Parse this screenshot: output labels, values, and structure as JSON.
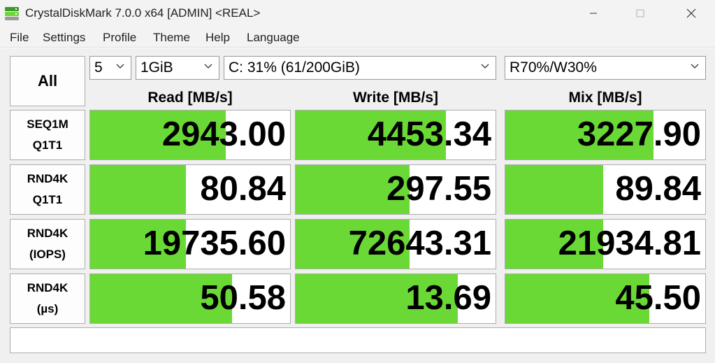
{
  "window": {
    "title": "CrystalDiskMark 7.0.0 x64 [ADMIN] <REAL>",
    "minimize_glyph": "—",
    "maximize_glyph": "☐",
    "close_glyph": "✕"
  },
  "menu": [
    "File",
    "Settings",
    "Profile",
    "Theme",
    "Help",
    "Language"
  ],
  "controls": {
    "all_label": "All",
    "count": "5",
    "size": "1GiB",
    "drive": "C: 31% (61/200GiB)",
    "mix": "R70%/W30%"
  },
  "columns": [
    "Read [MB/s]",
    "Write [MB/s]",
    "Mix [MB/s]"
  ],
  "rows": [
    {
      "line1": "SEQ1M",
      "line2": "Q1T1",
      "values": [
        "2943.00",
        "4453.34",
        "3227.90"
      ],
      "fills": [
        0.68,
        0.75,
        0.74
      ]
    },
    {
      "line1": "RND4K",
      "line2": "Q1T1",
      "values": [
        "80.84",
        "297.55",
        "89.84"
      ],
      "fills": [
        0.48,
        0.57,
        0.49
      ]
    },
    {
      "line1": "RND4K",
      "line2": "(IOPS)",
      "values": [
        "19735.60",
        "72643.31",
        "21934.81"
      ],
      "fills": [
        0.48,
        0.57,
        0.49
      ]
    },
    {
      "line1": "RND4K",
      "line2": "(µs)",
      "values": [
        "50.58",
        "13.69",
        "45.50"
      ],
      "fills": [
        0.71,
        0.81,
        0.72
      ]
    }
  ],
  "comment": "",
  "colors": {
    "bar": "#6ad936",
    "titlebar": "#f3f3f3",
    "background": "#f0f0f0"
  }
}
